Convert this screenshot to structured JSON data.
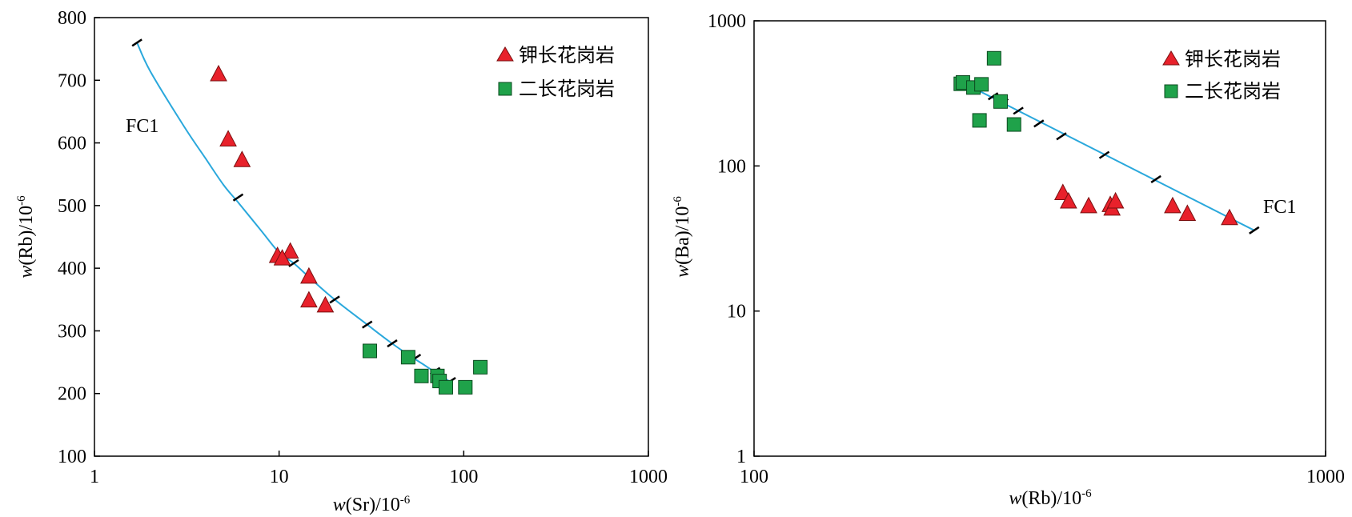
{
  "chart_data": [
    {
      "type": "scatter",
      "xscale": "log",
      "xlim": [
        1,
        1000
      ],
      "ylim": [
        100,
        800
      ],
      "xticks": [
        "1",
        "10",
        "100",
        "1000"
      ],
      "yticks": [
        "100",
        "200",
        "300",
        "400",
        "500",
        "600",
        "700",
        "800"
      ],
      "xlabel": {
        "var": "w",
        "main": "(Sr)/10",
        "sup": "-6"
      },
      "ylabel": {
        "var": "w",
        "main": "(Rb)/10",
        "sup": "-6"
      },
      "legend_position": "top-right",
      "series": [
        {
          "name": "钾长花岗岩",
          "marker": "triangle",
          "color": "#e8212b",
          "points": [
            [
              4.7,
              708
            ],
            [
              5.3,
              604
            ],
            [
              6.3,
              571
            ],
            [
              11.5,
              425
            ],
            [
              9.8,
              418
            ],
            [
              10.4,
              414
            ],
            [
              14.5,
              385
            ],
            [
              14.5,
              347
            ],
            [
              17.8,
              339
            ]
          ]
        },
        {
          "name": "二长花岗岩",
          "marker": "square",
          "color": "#1fa24a",
          "points": [
            [
              31,
              268
            ],
            [
              50,
              258
            ],
            [
              59,
              228
            ],
            [
              72,
              228
            ],
            [
              74,
              220
            ],
            [
              80,
              210
            ],
            [
              102,
              210
            ],
            [
              123,
              242
            ]
          ]
        }
      ],
      "trend": {
        "label": "FC1",
        "color": "#2aa8dc",
        "curve": [
          [
            1.7,
            760
          ],
          [
            2.0,
            715
          ],
          [
            3.0,
            630
          ],
          [
            4.0,
            575
          ],
          [
            5.0,
            533
          ],
          [
            6.0,
            505
          ],
          [
            8.0,
            460
          ],
          [
            10.0,
            425
          ],
          [
            12.0,
            408
          ],
          [
            15.0,
            382
          ],
          [
            20.0,
            350
          ],
          [
            30.0,
            310
          ],
          [
            40.0,
            282
          ],
          [
            50.0,
            262
          ],
          [
            60.0,
            247
          ],
          [
            70.0,
            234
          ],
          [
            85.0,
            218
          ]
        ],
        "ticks": [
          [
            1.7,
            760
          ],
          [
            6.0,
            513
          ],
          [
            12.0,
            408
          ],
          [
            20.0,
            350
          ],
          [
            30.0,
            310
          ],
          [
            41.0,
            280
          ],
          [
            55.0,
            257
          ],
          [
            70.0,
            236
          ],
          [
            85.0,
            220
          ]
        ]
      }
    },
    {
      "type": "scatter",
      "xscale": "log",
      "yscale": "log",
      "xlim": [
        100,
        1000
      ],
      "ylim": [
        1,
        1000
      ],
      "xticks": [
        "100",
        "1000"
      ],
      "yticks": [
        "1",
        "10",
        "100",
        "1000"
      ],
      "xlabel": {
        "var": "w",
        "main": "(Rb)/10",
        "sup": "-6"
      },
      "ylabel": {
        "var": "w",
        "main": "(Ba)/10",
        "sup": "-6"
      },
      "legend_position": "top-right",
      "series": [
        {
          "name": "钾长花岗岩",
          "marker": "triangle",
          "color": "#e8212b",
          "points": [
            [
              347,
              64
            ],
            [
              355,
              56
            ],
            [
              385,
              52
            ],
            [
              420,
              53
            ],
            [
              423,
              50
            ],
            [
              429,
              56
            ],
            [
              540,
              52
            ],
            [
              573,
              46
            ],
            [
              679,
              43
            ]
          ]
        },
        {
          "name": "二长花岗岩",
          "marker": "square",
          "color": "#1fa24a",
          "points": [
            [
              230,
              368
            ],
            [
              232,
              376
            ],
            [
              242,
              347
            ],
            [
              248,
              206
            ],
            [
              250,
              365
            ],
            [
              263,
              552
            ],
            [
              270,
              278
            ],
            [
              285,
              193
            ]
          ]
        }
      ],
      "trend": {
        "label": "FC1",
        "color": "#2aa8dc",
        "curve": [
          [
            240,
            350
          ],
          [
            750,
            36
          ]
        ],
        "ticks": [
          [
            245,
            339
          ],
          [
            262,
            302
          ],
          [
            273,
            275
          ],
          [
            290,
            240
          ],
          [
            315,
            196
          ],
          [
            345,
            160
          ],
          [
            410,
            119
          ],
          [
            505,
            81
          ],
          [
            750,
            36
          ]
        ]
      }
    }
  ],
  "colors": {
    "axis": "#000000",
    "trend": "#2aa8dc",
    "triangle": "#e8212b",
    "square": "#1fa24a"
  }
}
